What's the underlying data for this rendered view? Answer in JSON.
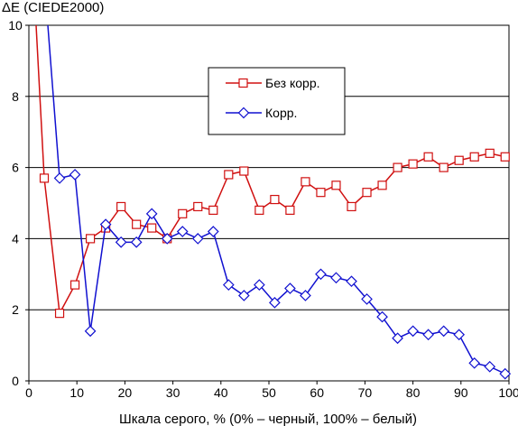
{
  "chart_data": {
    "type": "line",
    "title": "",
    "ylabel": "ΔE (CIEDE2000)",
    "xlabel": "Шкала серого, % (0% – черный, 100% – белый)",
    "xlim": [
      0,
      100
    ],
    "ylim": [
      0,
      10
    ],
    "xticks": [
      0,
      10,
      20,
      30,
      40,
      50,
      60,
      70,
      80,
      90,
      100
    ],
    "yticks": [
      0,
      2,
      4,
      6,
      8,
      10
    ],
    "grid": "horizontal",
    "legend_position": "top-center",
    "series": [
      {
        "name": "Без корр.",
        "color": "#d01010",
        "marker": "square",
        "x": [
          3.2,
          6.4,
          9.6,
          12.8,
          16.0,
          19.2,
          22.4,
          25.6,
          28.8,
          32.0,
          35.2,
          38.4,
          41.6,
          44.8,
          48.0,
          51.2,
          54.4,
          57.6,
          60.8,
          64.0,
          67.2,
          70.4,
          73.6,
          76.8,
          80.0,
          83.2,
          86.4,
          89.6,
          92.8,
          96.0,
          99.2
        ],
        "y": [
          5.7,
          1.9,
          2.7,
          4.0,
          4.3,
          4.9,
          4.4,
          4.3,
          4.0,
          4.7,
          4.9,
          4.8,
          5.8,
          5.9,
          4.8,
          5.1,
          4.8,
          5.6,
          5.3,
          5.5,
          4.9,
          5.3,
          5.5,
          6.0,
          6.1,
          6.3,
          6.0,
          6.2,
          6.3,
          6.4,
          6.3
        ]
      },
      {
        "name": "Корр.",
        "color": "#1010d0",
        "marker": "diamond",
        "x": [
          6.4,
          9.6,
          12.8,
          16.0,
          19.2,
          22.4,
          25.6,
          28.8,
          32.0,
          35.2,
          38.4,
          41.6,
          44.8,
          48.0,
          51.2,
          54.4,
          57.6,
          60.8,
          64.0,
          67.2,
          70.4,
          73.6,
          76.8,
          80.0,
          83.2,
          86.4,
          89.6,
          92.8,
          96.0,
          99.2
        ],
        "y": [
          5.7,
          5.8,
          1.4,
          4.4,
          3.9,
          3.9,
          4.7,
          4.0,
          4.2,
          4.0,
          4.2,
          2.7,
          2.4,
          2.7,
          2.2,
          2.6,
          2.4,
          3.0,
          2.9,
          2.8,
          2.3,
          1.8,
          1.2,
          1.4,
          1.3,
          1.4,
          1.3,
          0.5,
          0.4,
          0.2
        ]
      }
    ]
  }
}
